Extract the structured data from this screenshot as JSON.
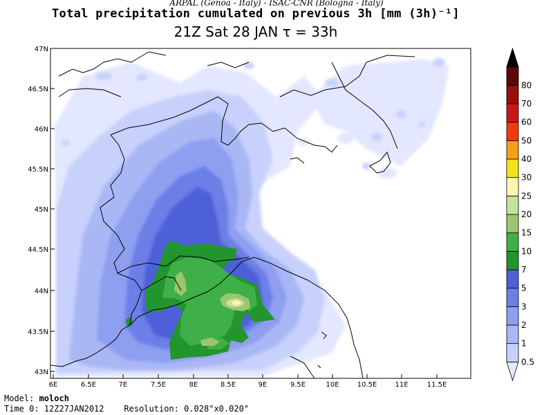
{
  "header": {
    "line1": "ARPAL (Genoa - Italy)  -  ISAC-CNR (Bologna - Italy)",
    "line2": "Total precipitation cumulated on previous 3h [mm (3h)⁻¹]",
    "line3": "21Z Sat 28 JAN  τ = 33h"
  },
  "axes": {
    "lat_labels": [
      "47N",
      "46.5N",
      "46N",
      "45.5N",
      "45N",
      "44.5N",
      "44N",
      "43.5N",
      "43N"
    ],
    "lon_labels": [
      "6E",
      "6.5E",
      "7E",
      "7.5E",
      "8E",
      "8.5E",
      "9E",
      "9.5E",
      "10E",
      "10.5E",
      "11E",
      "11.5E"
    ]
  },
  "colorbar": {
    "levels": [
      "0.5",
      "1",
      "2",
      "3",
      "5",
      "7",
      "10",
      "15",
      "20",
      "25",
      "30",
      "40",
      "50",
      "60",
      "70",
      "80"
    ],
    "colors": [
      "#e3e7ff",
      "#c7d1fb",
      "#a9b7f5",
      "#8e9ff0",
      "#6c7fe6",
      "#4d60d8",
      "#22952f",
      "#3fb048",
      "#9cc66e",
      "#c7e29c",
      "#fbf7b0",
      "#f5e31a",
      "#f5a016",
      "#f03a11",
      "#cc1616",
      "#9a0e0e",
      "#5e0808",
      "#000000"
    ]
  },
  "footer": {
    "model_label": "Model: ",
    "model_value": "moloch",
    "time_label": "Time 0: ",
    "time_value": "12Z27JAN2012",
    "res_label": "Resolution: ",
    "res_value": "0.028°x0.020°"
  }
}
